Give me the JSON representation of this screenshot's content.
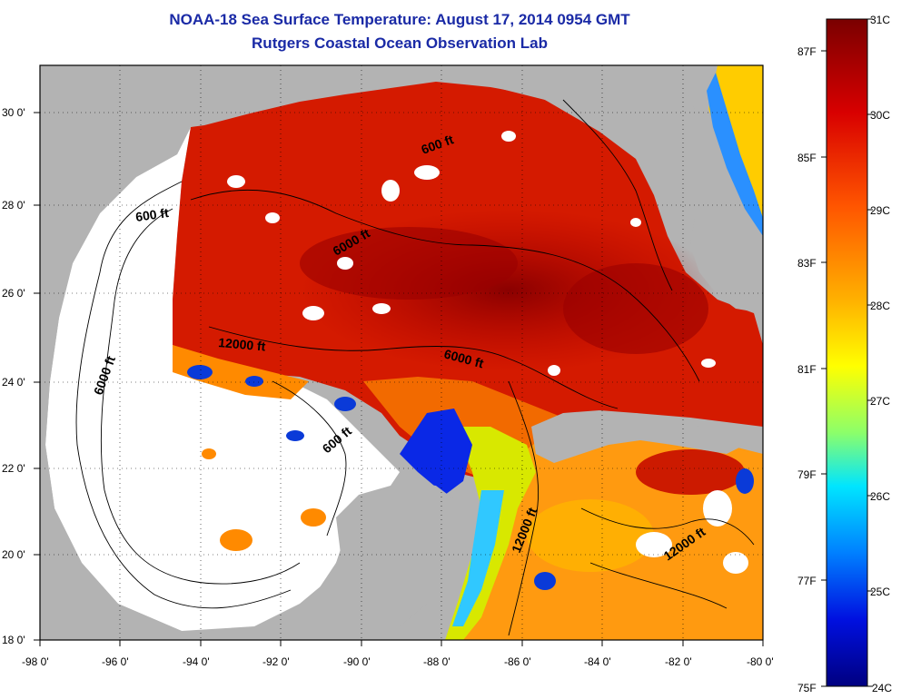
{
  "header": {
    "title": "NOAA-18 Sea Surface Temperature:  August 17, 2014 0954 GMT",
    "subtitle": "Rutgers Coastal Ocean Observation Lab"
  },
  "map": {
    "region": "Gulf of Mexico",
    "lon_range": [
      -98,
      -80
    ],
    "lat_range": [
      18,
      31
    ],
    "lon_ticks": [
      "-98 0'",
      "-96 0'",
      "-94 0'",
      "-92 0'",
      "-90 0'",
      "-88 0'",
      "-86 0'",
      "-84 0'",
      "-82 0'",
      "-80 0'"
    ],
    "lat_ticks": [
      "18 0'",
      "20 0'",
      "22 0'",
      "24 0'",
      "26 0'",
      "28 0'",
      "30 0'"
    ],
    "contour_labels": [
      {
        "text": "600 ft"
      },
      {
        "text": "600 ft"
      },
      {
        "text": "6000 ft"
      },
      {
        "text": "6000 ft"
      },
      {
        "text": "12000 ft"
      },
      {
        "text": "6000 ft"
      },
      {
        "text": "600 ft"
      },
      {
        "text": "12000 ft"
      },
      {
        "text": "12000 ft"
      }
    ],
    "colors": {
      "land": "#b3b3b3",
      "cloud": "#ffffff",
      "frame": "#000000"
    }
  },
  "colorbar": {
    "min_c": 24,
    "max_c": 31,
    "celsius_labels": [
      "31C",
      "30C",
      "29C",
      "28C",
      "27C",
      "26C",
      "25C",
      "24C"
    ],
    "fahrenheit_labels": [
      "87F",
      "85F",
      "83F",
      "81F",
      "79F",
      "77F",
      "75F"
    ],
    "gradient": [
      "#7a0000",
      "#d80000",
      "#ff5500",
      "#ffa800",
      "#ffff00",
      "#9aff5a",
      "#00e0ff",
      "#0070ff",
      "#0000c8",
      "#000080"
    ]
  }
}
